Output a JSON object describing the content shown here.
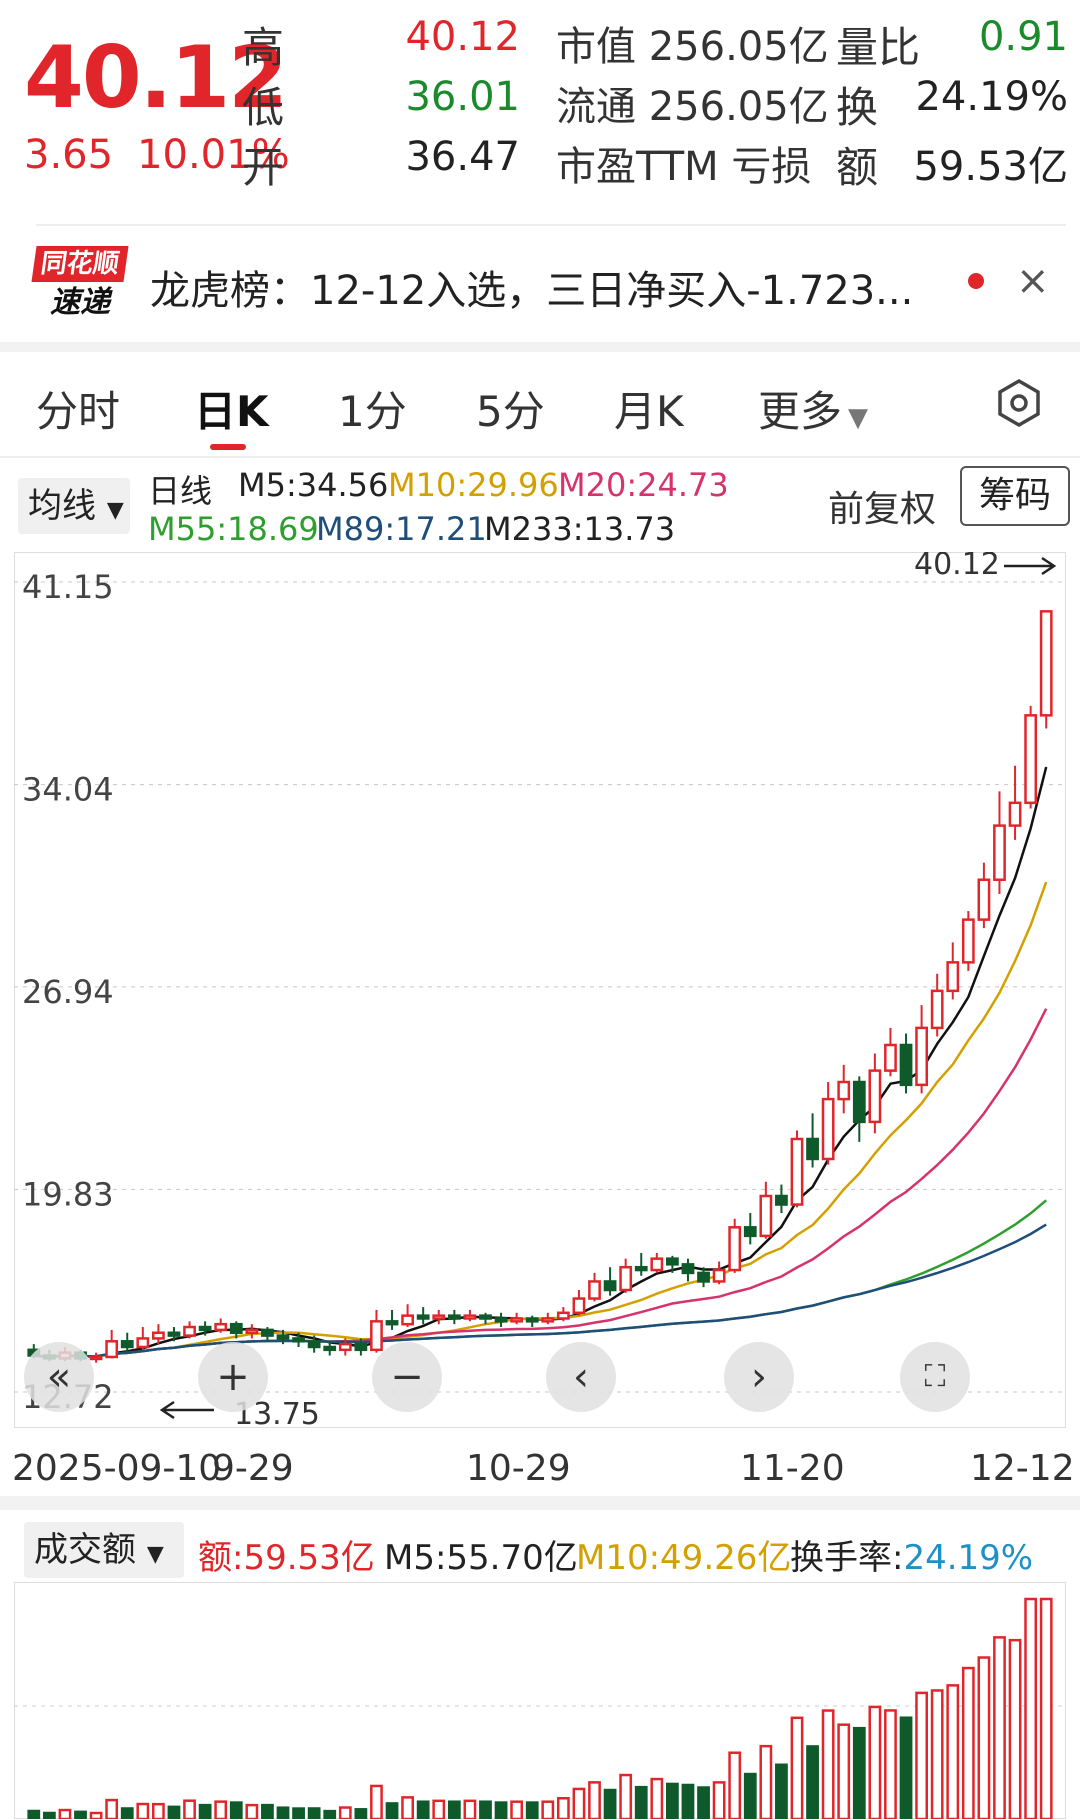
{
  "quote": {
    "price": "40.12",
    "change": "3.65",
    "change_pct": "10.01%",
    "fields": [
      {
        "label": "高",
        "value": "40.12",
        "color": "#e0262b"
      },
      {
        "label": "低",
        "value": "36.01",
        "color": "#1a8a2a"
      },
      {
        "label": "开",
        "value": "36.47",
        "color": "#222222"
      }
    ],
    "mid": [
      {
        "label": "市值",
        "value": "256.05亿"
      },
      {
        "label": "流通",
        "value": "256.05亿"
      },
      {
        "label": "市盈TTM",
        "value": "亏损"
      }
    ],
    "right": [
      {
        "label": "量比",
        "value": "0.91",
        "color": "#1a8a2a"
      },
      {
        "label": "换",
        "value": "24.19%",
        "color": "#222222"
      },
      {
        "label": "额",
        "value": "59.53亿",
        "color": "#222222"
      }
    ]
  },
  "banner": {
    "logo_top": "同花顺",
    "logo_bottom": "速递",
    "text": "龙虎榜：12-12入选，三日净买入-1.723...",
    "close": "×"
  },
  "tabs": [
    "分时",
    "日K",
    "1分",
    "5分",
    "月K",
    "更多"
  ],
  "active_tab": "日K",
  "ma_bar": {
    "button": "均线",
    "title": "日线",
    "items_row1": [
      {
        "text": "M5:34.56",
        "color": "#222222"
      },
      {
        "text": "M10:29.96",
        "color": "#d4a000"
      },
      {
        "text": "M20:24.73",
        "color": "#d6336c"
      }
    ],
    "items_row2": [
      {
        "text": "M55:18.69",
        "color": "#2e9e2e"
      },
      {
        "text": "M89:17.21",
        "color": "#1f4e79"
      },
      {
        "text": "M233:13.73",
        "color": "#222222"
      }
    ],
    "adjust": "前复权",
    "chips": "筹码"
  },
  "chart_data": {
    "type": "candlestick",
    "y_ticks": [
      "41.15",
      "34.04",
      "26.94",
      "19.83",
      "12.72"
    ],
    "ylim": [
      12.72,
      41.15
    ],
    "x_labels": [
      "2025-09-10",
      "9-29",
      "10-29",
      "11-20",
      "12-12"
    ],
    "high_label": "40.12",
    "low_label": "13.75",
    "candles": [
      [
        14.2,
        14.0,
        14.4,
        13.9
      ],
      [
        14.0,
        13.9,
        14.2,
        13.8
      ],
      [
        13.9,
        14.1,
        14.3,
        13.8
      ],
      [
        14.1,
        13.9,
        14.2,
        13.8
      ],
      [
        13.9,
        13.95,
        14.1,
        13.75
      ],
      [
        13.95,
        14.5,
        14.9,
        13.9
      ],
      [
        14.5,
        14.3,
        14.8,
        14.1
      ],
      [
        14.3,
        14.6,
        15.0,
        14.2
      ],
      [
        14.6,
        14.8,
        15.1,
        14.4
      ],
      [
        14.8,
        14.7,
        15.0,
        14.5
      ],
      [
        14.7,
        15.0,
        15.2,
        14.6
      ],
      [
        15.0,
        14.9,
        15.2,
        14.7
      ],
      [
        14.9,
        15.1,
        15.3,
        14.8
      ],
      [
        15.1,
        14.8,
        15.2,
        14.6
      ],
      [
        14.8,
        14.9,
        15.1,
        14.6
      ],
      [
        14.9,
        14.7,
        15.0,
        14.5
      ],
      [
        14.7,
        14.6,
        14.9,
        14.4
      ],
      [
        14.6,
        14.5,
        14.8,
        14.3
      ],
      [
        14.5,
        14.3,
        14.7,
        14.1
      ],
      [
        14.3,
        14.2,
        14.5,
        14.0
      ],
      [
        14.2,
        14.4,
        14.6,
        14.0
      ],
      [
        14.4,
        14.2,
        14.6,
        14.0
      ],
      [
        14.2,
        15.2,
        15.6,
        14.1
      ],
      [
        15.2,
        15.1,
        15.6,
        14.9
      ],
      [
        15.1,
        15.4,
        15.8,
        15.0
      ],
      [
        15.4,
        15.3,
        15.7,
        15.1
      ],
      [
        15.3,
        15.4,
        15.6,
        15.1
      ],
      [
        15.4,
        15.3,
        15.6,
        15.1
      ],
      [
        15.3,
        15.4,
        15.6,
        15.2
      ],
      [
        15.4,
        15.3,
        15.5,
        15.1
      ],
      [
        15.3,
        15.2,
        15.5,
        15.0
      ],
      [
        15.2,
        15.3,
        15.5,
        15.1
      ],
      [
        15.3,
        15.2,
        15.4,
        15.0
      ],
      [
        15.2,
        15.3,
        15.5,
        15.1
      ],
      [
        15.3,
        15.5,
        15.7,
        15.2
      ],
      [
        15.5,
        16.0,
        16.3,
        15.4
      ],
      [
        16.0,
        16.6,
        16.9,
        15.9
      ],
      [
        16.6,
        16.3,
        17.1,
        16.1
      ],
      [
        16.3,
        17.1,
        17.4,
        16.2
      ],
      [
        17.1,
        17.0,
        17.6,
        16.8
      ],
      [
        17.0,
        17.4,
        17.6,
        16.9
      ],
      [
        17.4,
        17.2,
        17.5,
        16.9
      ],
      [
        17.2,
        16.9,
        17.4,
        16.6
      ],
      [
        16.9,
        16.6,
        17.1,
        16.4
      ],
      [
        16.6,
        17.0,
        17.3,
        16.5
      ],
      [
        17.0,
        18.5,
        18.8,
        16.9
      ],
      [
        18.5,
        18.2,
        19.0,
        17.9
      ],
      [
        18.2,
        19.6,
        20.1,
        18.1
      ],
      [
        19.6,
        19.3,
        20.0,
        19.0
      ],
      [
        19.3,
        21.6,
        21.9,
        19.2
      ],
      [
        21.6,
        20.9,
        22.5,
        20.6
      ],
      [
        20.9,
        23.0,
        23.6,
        20.7
      ],
      [
        23.0,
        23.6,
        24.2,
        22.5
      ],
      [
        23.6,
        22.2,
        23.8,
        21.5
      ],
      [
        22.2,
        24.0,
        24.6,
        21.8
      ],
      [
        24.0,
        24.9,
        25.5,
        23.8
      ],
      [
        24.9,
        23.5,
        25.3,
        23.2
      ],
      [
        23.5,
        25.5,
        26.3,
        23.2
      ],
      [
        25.5,
        26.8,
        27.4,
        25.2
      ],
      [
        26.8,
        27.8,
        28.5,
        26.5
      ],
      [
        27.8,
        29.3,
        29.6,
        27.5
      ],
      [
        29.3,
        30.7,
        31.3,
        29.0
      ],
      [
        30.7,
        32.6,
        33.8,
        30.2
      ],
      [
        32.6,
        33.4,
        34.7,
        32.1
      ],
      [
        33.4,
        36.47,
        36.8,
        33.2
      ],
      [
        36.47,
        40.12,
        40.12,
        36.01
      ]
    ]
  },
  "dates_display": [
    "2025-09-10",
    "9-29",
    "10-29",
    "11-20",
    "12-12"
  ],
  "volume_bar": {
    "button": "成交额",
    "amount": "额:59.53亿",
    "m5": "M5:55.70亿",
    "m10": "M10:49.26亿",
    "turnover_label": "换手率:",
    "turnover_value": "24.19%"
  },
  "colors": {
    "up": "#e0262b",
    "down": "#0f5a2a",
    "m5": "#111111",
    "m10": "#d4a000",
    "m20": "#d6336c",
    "m55": "#2e9e2e",
    "m89": "#1f4e79"
  }
}
